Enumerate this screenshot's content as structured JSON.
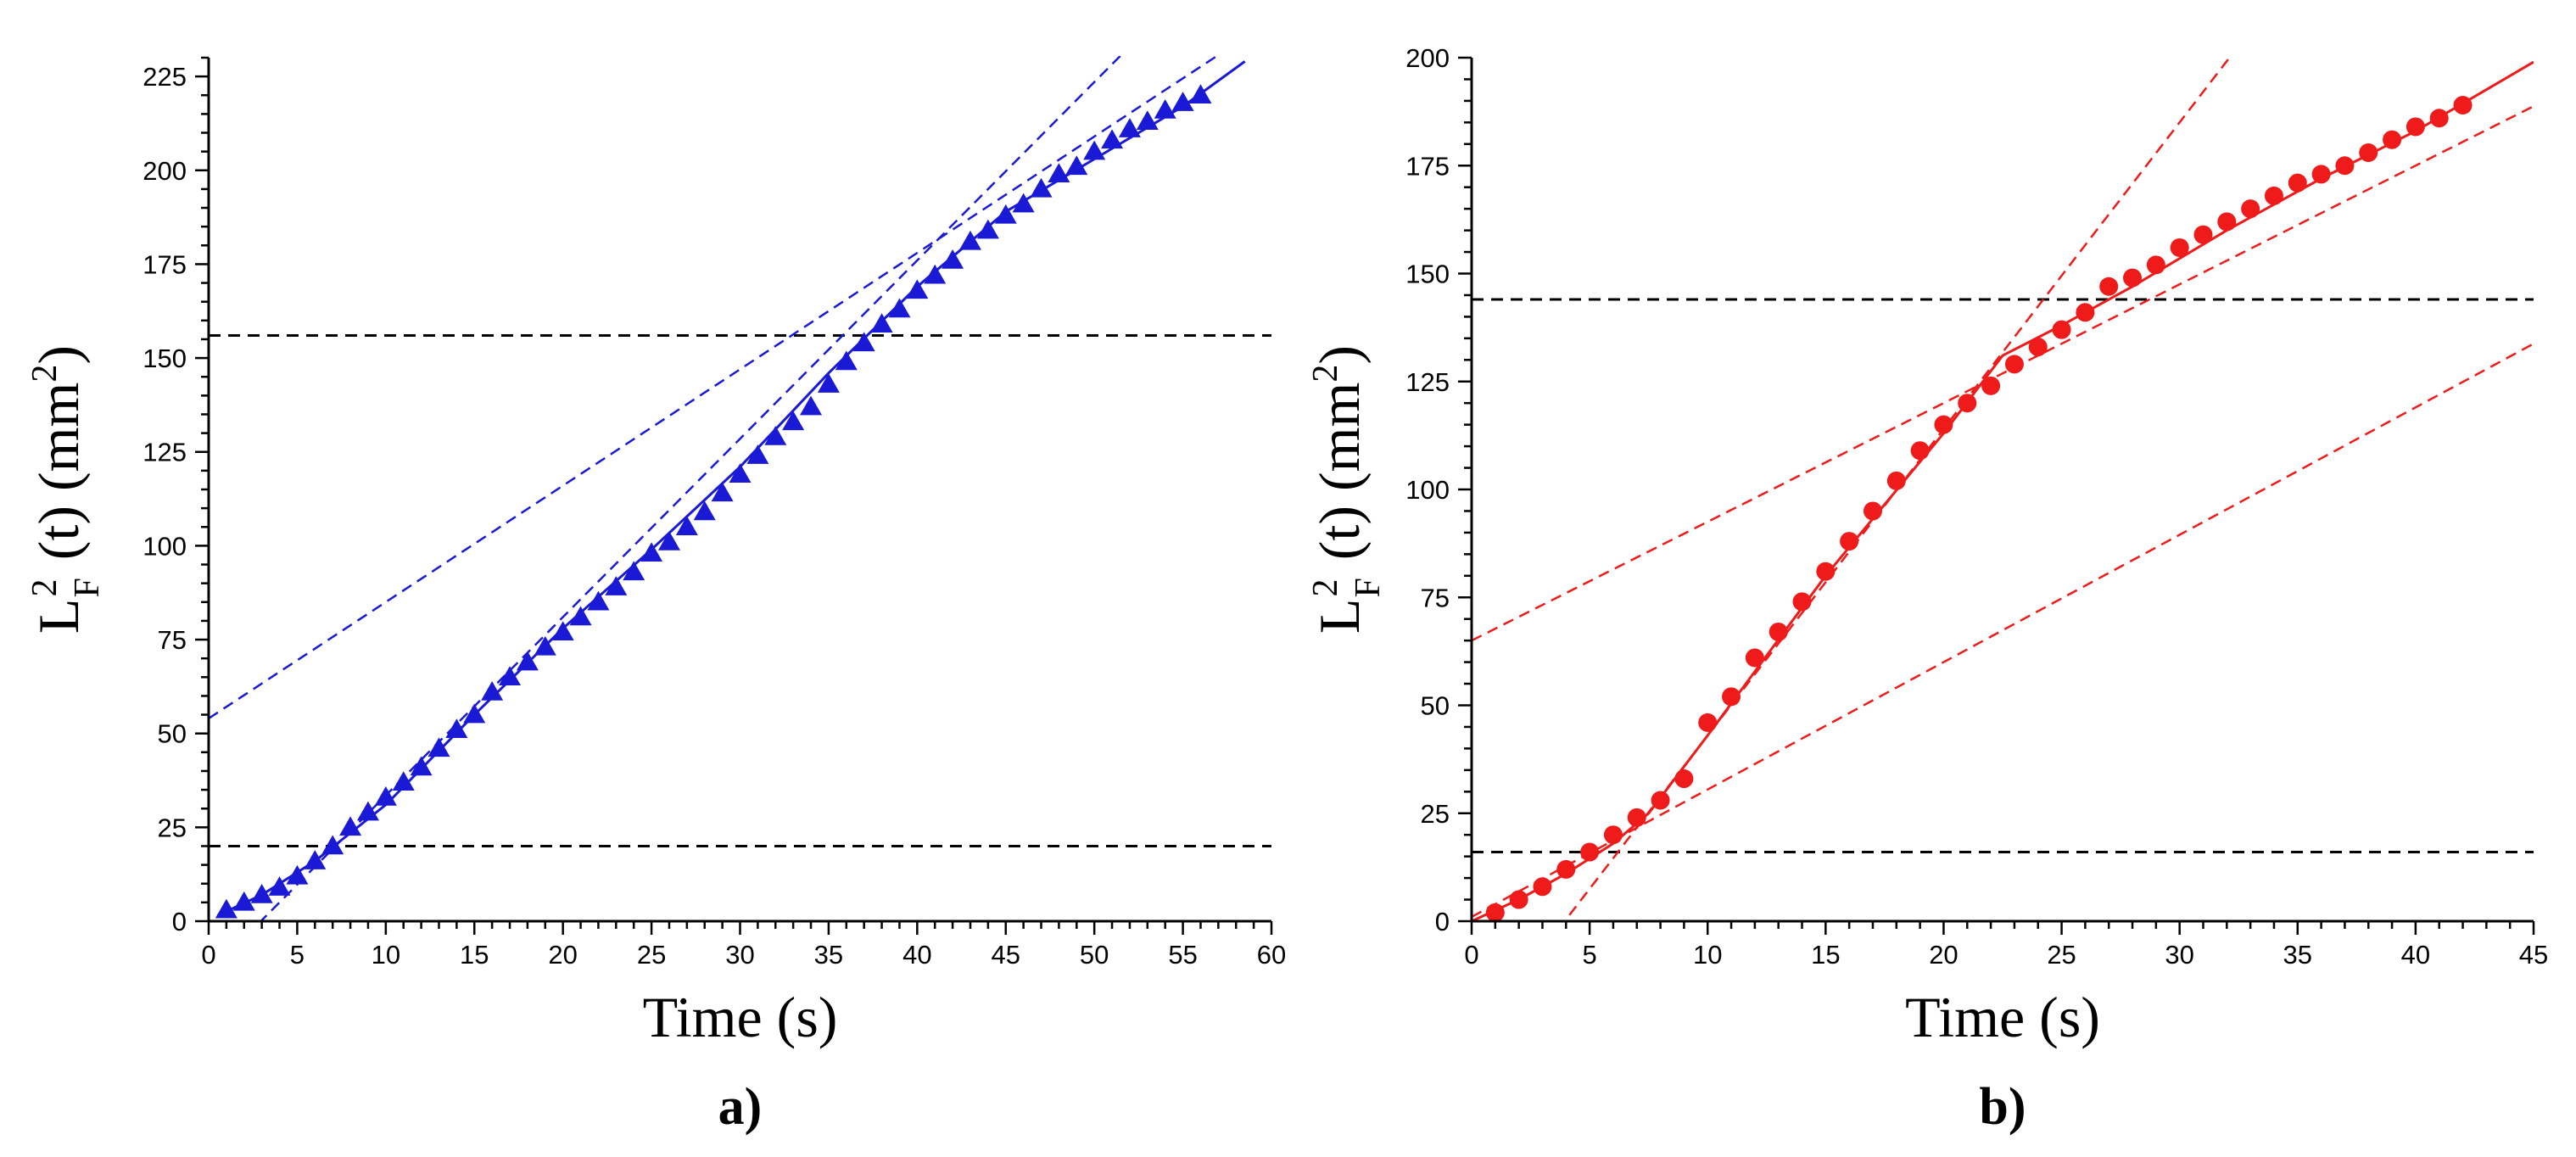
{
  "chart_data": [
    {
      "type": "scatter",
      "panel_label": "a)",
      "xlabel": "Time (s)",
      "ylabel": "L_F^2 (t) (mm^2)",
      "ylabel_parts": {
        "base": "L",
        "sub": "F",
        "sup": "2",
        "mid": "(t) (mm",
        "sup2": "2",
        "end": ")"
      },
      "xlim": [
        0,
        60
      ],
      "ylim": [
        0,
        230
      ],
      "xticks": [
        0,
        5,
        10,
        15,
        20,
        25,
        30,
        35,
        40,
        45,
        50,
        55,
        60
      ],
      "yticks": [
        0,
        25,
        50,
        75,
        100,
        125,
        150,
        175,
        200,
        225
      ],
      "xminor": 1,
      "yminor": 5,
      "colors": {
        "main": "#1a1ad6",
        "ref": "#000000"
      },
      "marker": "triangle",
      "series": [
        {
          "name": "data",
          "x": [
            1,
            2,
            3,
            4,
            5,
            6,
            7,
            8,
            9,
            10,
            11,
            12,
            13,
            14,
            15,
            16,
            17,
            18,
            19,
            20,
            21,
            22,
            23,
            24,
            25,
            26,
            27,
            28,
            29,
            30,
            31,
            32,
            33,
            34,
            35,
            36,
            37,
            38,
            39,
            40,
            41,
            42,
            43,
            44,
            45,
            46,
            47,
            48,
            49,
            50,
            51,
            52,
            53,
            54,
            55,
            56
          ],
          "y": [
            3,
            5,
            7,
            9,
            12,
            16,
            20,
            25,
            29,
            33,
            37,
            41,
            46,
            51,
            55,
            61,
            65,
            69,
            73,
            77,
            81,
            85,
            89,
            93,
            98,
            101,
            105,
            109,
            114,
            119,
            124,
            129,
            133,
            137,
            143,
            149,
            154,
            159,
            163,
            168,
            172,
            176,
            181,
            184,
            188,
            191,
            195,
            199,
            201,
            205,
            208,
            211,
            213,
            216,
            218,
            220
          ]
        }
      ],
      "fit_curve": {
        "x": [
          0.5,
          3,
          6,
          10,
          15,
          20,
          25,
          30,
          35,
          40,
          45,
          50,
          55,
          58.5
        ],
        "y": [
          1.5,
          7,
          16,
          31,
          55,
          78,
          99,
          121,
          146,
          169,
          189,
          203,
          217,
          229
        ]
      },
      "tangent_lines": [
        {
          "slope": 4.75,
          "intercept": -14
        },
        {
          "slope": 3.1,
          "intercept": 54
        }
      ],
      "hlines": [
        20,
        156
      ]
    },
    {
      "type": "scatter",
      "panel_label": "b)",
      "xlabel": "Time (s)",
      "ylabel": "L_F^2 (t) (mm^2)",
      "ylabel_parts": {
        "base": "L",
        "sub": "F",
        "sup": "2",
        "mid": "(t) (mm",
        "sup2": "2",
        "end": ")"
      },
      "xlim": [
        0,
        45
      ],
      "ylim": [
        0,
        200
      ],
      "xticks": [
        0,
        5,
        10,
        15,
        20,
        25,
        30,
        35,
        40,
        45
      ],
      "yticks": [
        0,
        25,
        50,
        75,
        100,
        125,
        150,
        175,
        200
      ],
      "xminor": 1,
      "yminor": 5,
      "colors": {
        "main": "#ef1b1b",
        "ref": "#000000"
      },
      "marker": "circle",
      "series": [
        {
          "name": "data",
          "x": [
            1,
            2,
            3,
            4,
            5,
            6,
            7,
            8,
            9,
            10,
            11,
            12,
            13,
            14,
            15,
            16,
            17,
            18,
            19,
            20,
            21,
            22,
            23,
            24,
            25,
            26,
            27,
            28,
            29,
            30,
            31,
            32,
            33,
            34,
            35,
            36,
            37,
            38,
            39,
            40,
            41,
            42
          ],
          "y": [
            2,
            5,
            8,
            12,
            16,
            20,
            24,
            28,
            33,
            46,
            52,
            61,
            67,
            74,
            81,
            88,
            95,
            102,
            109,
            115,
            120,
            124,
            129,
            133,
            137,
            141,
            147,
            149,
            152,
            156,
            159,
            162,
            165,
            168,
            171,
            173,
            175,
            178,
            181,
            184,
            186,
            189
          ]
        }
      ],
      "fit_curve": {
        "x": [
          0,
          2,
          4,
          6,
          7.5,
          10,
          15,
          20,
          22.5,
          25,
          28,
          32,
          36,
          40,
          45
        ],
        "y": [
          0,
          5,
          11,
          18,
          25,
          43,
          80,
          113,
          131,
          138,
          147,
          160,
          172,
          183,
          199
        ]
      },
      "tangent_lines": [
        {
          "slope": 7.1,
          "intercept": -28
        },
        {
          "slope": 2.75,
          "intercept": 65
        },
        {
          "slope": 2.95,
          "intercept": 1
        }
      ],
      "hlines": [
        16,
        144
      ]
    }
  ]
}
